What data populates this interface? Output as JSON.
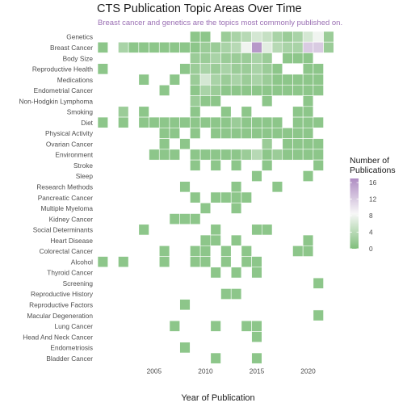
{
  "chart_data": {
    "type": "heatmap",
    "title": "CTS Publication Topic Areas Over Time",
    "subtitle": "Breast cancer and genetics are the topics most commonly published on.",
    "xlabel": "Year of Publication",
    "ylabel": "",
    "xlim": [
      1999.5,
      2022.5
    ],
    "x_ticks": [
      2005,
      2010,
      2015,
      2020
    ],
    "legend": {
      "title_line1": "Number of",
      "title_line2": "Publications",
      "range": [
        0,
        17
      ],
      "ticks": [
        0,
        4,
        8,
        12,
        16
      ],
      "colors": {
        "low": "#7fbf7b",
        "mid": "#f7f7f7",
        "high": "#af8dc3"
      }
    },
    "topics": [
      "Genetics",
      "Breast Cancer",
      "Body Size",
      "Reproductive Health",
      "Medications",
      "Endometrial Cancer",
      "Non-Hodgkin Lymphoma",
      "Smoking",
      "Diet",
      "Physical Activity",
      "Ovarian Cancer",
      "Environment",
      "Stroke",
      "Sleep",
      "Research Methods",
      "Pancreatic Cancer",
      "Multiple Myeloma",
      "Kidney Cancer",
      "Social Determinants",
      "Heart Disease",
      "Colorectal Cancer",
      "Alcohol",
      "Thyroid Cancer",
      "Screening",
      "Reproductive History",
      "Reproductive Factors",
      "Macular Degeneration",
      "Lung Cancer",
      "Head And Neck Cancer",
      "Endometriosis",
      "Bladder Cancer"
    ],
    "cells": [
      [
        "Genetics",
        2009,
        1
      ],
      [
        "Genetics",
        2010,
        1
      ],
      [
        "Genetics",
        2012,
        2
      ],
      [
        "Genetics",
        2013,
        3
      ],
      [
        "Genetics",
        2014,
        4
      ],
      [
        "Genetics",
        2015,
        6
      ],
      [
        "Genetics",
        2016,
        5
      ],
      [
        "Genetics",
        2017,
        3
      ],
      [
        "Genetics",
        2018,
        2
      ],
      [
        "Genetics",
        2019,
        3
      ],
      [
        "Genetics",
        2020,
        6
      ],
      [
        "Genetics",
        2021,
        8
      ],
      [
        "Genetics",
        2022,
        2
      ],
      [
        "Breast Cancer",
        2000,
        1
      ],
      [
        "Breast Cancer",
        2002,
        3
      ],
      [
        "Breast Cancer",
        2003,
        1
      ],
      [
        "Breast Cancer",
        2004,
        1
      ],
      [
        "Breast Cancer",
        2005,
        1
      ],
      [
        "Breast Cancer",
        2006,
        1
      ],
      [
        "Breast Cancer",
        2007,
        1
      ],
      [
        "Breast Cancer",
        2008,
        1
      ],
      [
        "Breast Cancer",
        2009,
        1
      ],
      [
        "Breast Cancer",
        2010,
        2
      ],
      [
        "Breast Cancer",
        2011,
        2
      ],
      [
        "Breast Cancer",
        2012,
        3
      ],
      [
        "Breast Cancer",
        2013,
        4
      ],
      [
        "Breast Cancer",
        2014,
        8
      ],
      [
        "Breast Cancer",
        2015,
        16
      ],
      [
        "Breast Cancer",
        2016,
        7
      ],
      [
        "Breast Cancer",
        2017,
        4
      ],
      [
        "Breast Cancer",
        2018,
        3
      ],
      [
        "Breast Cancer",
        2019,
        3
      ],
      [
        "Breast Cancer",
        2020,
        12
      ],
      [
        "Breast Cancer",
        2021,
        12
      ],
      [
        "Breast Cancer",
        2022,
        2
      ],
      [
        "Body Size",
        2009,
        2
      ],
      [
        "Body Size",
        2010,
        2
      ],
      [
        "Body Size",
        2011,
        3
      ],
      [
        "Body Size",
        2012,
        2
      ],
      [
        "Body Size",
        2013,
        2
      ],
      [
        "Body Size",
        2014,
        2
      ],
      [
        "Body Size",
        2015,
        3
      ],
      [
        "Body Size",
        2016,
        2
      ],
      [
        "Body Size",
        2018,
        1
      ],
      [
        "Body Size",
        2019,
        1
      ],
      [
        "Body Size",
        2020,
        1
      ],
      [
        "Reproductive Health",
        2000,
        1
      ],
      [
        "Reproductive Health",
        2008,
        1
      ],
      [
        "Reproductive Health",
        2009,
        2
      ],
      [
        "Reproductive Health",
        2010,
        3
      ],
      [
        "Reproductive Health",
        2011,
        2
      ],
      [
        "Reproductive Health",
        2012,
        3
      ],
      [
        "Reproductive Health",
        2013,
        2
      ],
      [
        "Reproductive Health",
        2014,
        2
      ],
      [
        "Reproductive Health",
        2015,
        3
      ],
      [
        "Reproductive Health",
        2016,
        2
      ],
      [
        "Reproductive Health",
        2017,
        1
      ],
      [
        "Reproductive Health",
        2020,
        1
      ],
      [
        "Reproductive Health",
        2021,
        1
      ],
      [
        "Medications",
        2004,
        1
      ],
      [
        "Medications",
        2007,
        1
      ],
      [
        "Medications",
        2009,
        2
      ],
      [
        "Medications",
        2010,
        6
      ],
      [
        "Medications",
        2011,
        3
      ],
      [
        "Medications",
        2012,
        2
      ],
      [
        "Medications",
        2013,
        3
      ],
      [
        "Medications",
        2014,
        2
      ],
      [
        "Medications",
        2015,
        3
      ],
      [
        "Medications",
        2016,
        2
      ],
      [
        "Medications",
        2017,
        1
      ],
      [
        "Medications",
        2018,
        1
      ],
      [
        "Medications",
        2019,
        1
      ],
      [
        "Medications",
        2020,
        1
      ],
      [
        "Medications",
        2021,
        1
      ],
      [
        "Endometrial Cancer",
        2006,
        1
      ],
      [
        "Endometrial Cancer",
        2009,
        1
      ],
      [
        "Endometrial Cancer",
        2010,
        3
      ],
      [
        "Endometrial Cancer",
        2011,
        2
      ],
      [
        "Endometrial Cancer",
        2012,
        1
      ],
      [
        "Endometrial Cancer",
        2013,
        1
      ],
      [
        "Endometrial Cancer",
        2014,
        1
      ],
      [
        "Endometrial Cancer",
        2015,
        1
      ],
      [
        "Endometrial Cancer",
        2016,
        1
      ],
      [
        "Endometrial Cancer",
        2017,
        1
      ],
      [
        "Endometrial Cancer",
        2018,
        1
      ],
      [
        "Endometrial Cancer",
        2019,
        1
      ],
      [
        "Endometrial Cancer",
        2020,
        1
      ],
      [
        "Endometrial Cancer",
        2021,
        1
      ],
      [
        "Non-Hodgkin Lymphoma",
        2009,
        2
      ],
      [
        "Non-Hodgkin Lymphoma",
        2010,
        1
      ],
      [
        "Non-Hodgkin Lymphoma",
        2011,
        1
      ],
      [
        "Non-Hodgkin Lymphoma",
        2016,
        1
      ],
      [
        "Non-Hodgkin Lymphoma",
        2020,
        1
      ],
      [
        "Smoking",
        2002,
        2
      ],
      [
        "Smoking",
        2004,
        1
      ],
      [
        "Smoking",
        2009,
        1
      ],
      [
        "Smoking",
        2012,
        1
      ],
      [
        "Smoking",
        2014,
        1
      ],
      [
        "Smoking",
        2019,
        1
      ],
      [
        "Smoking",
        2020,
        1
      ],
      [
        "Diet",
        2000,
        1
      ],
      [
        "Diet",
        2002,
        1
      ],
      [
        "Diet",
        2004,
        1
      ],
      [
        "Diet",
        2005,
        1
      ],
      [
        "Diet",
        2006,
        1
      ],
      [
        "Diet",
        2007,
        1
      ],
      [
        "Diet",
        2008,
        1
      ],
      [
        "Diet",
        2009,
        1
      ],
      [
        "Diet",
        2010,
        1
      ],
      [
        "Diet",
        2011,
        1
      ],
      [
        "Diet",
        2012,
        1
      ],
      [
        "Diet",
        2013,
        2
      ],
      [
        "Diet",
        2014,
        1
      ],
      [
        "Diet",
        2015,
        1
      ],
      [
        "Diet",
        2016,
        1
      ],
      [
        "Diet",
        2017,
        1
      ],
      [
        "Diet",
        2019,
        1
      ],
      [
        "Diet",
        2020,
        1
      ],
      [
        "Diet",
        2021,
        1
      ],
      [
        "Physical Activity",
        2006,
        1
      ],
      [
        "Physical Activity",
        2007,
        1
      ],
      [
        "Physical Activity",
        2009,
        1
      ],
      [
        "Physical Activity",
        2011,
        1
      ],
      [
        "Physical Activity",
        2012,
        1
      ],
      [
        "Physical Activity",
        2013,
        1
      ],
      [
        "Physical Activity",
        2014,
        1
      ],
      [
        "Physical Activity",
        2015,
        1
      ],
      [
        "Physical Activity",
        2016,
        1
      ],
      [
        "Physical Activity",
        2017,
        1
      ],
      [
        "Physical Activity",
        2018,
        1
      ],
      [
        "Physical Activity",
        2019,
        1
      ],
      [
        "Physical Activity",
        2020,
        1
      ],
      [
        "Ovarian Cancer",
        2006,
        1
      ],
      [
        "Ovarian Cancer",
        2008,
        1
      ],
      [
        "Ovarian Cancer",
        2016,
        2
      ],
      [
        "Ovarian Cancer",
        2018,
        1
      ],
      [
        "Ovarian Cancer",
        2019,
        1
      ],
      [
        "Ovarian Cancer",
        2020,
        1
      ],
      [
        "Ovarian Cancer",
        2021,
        1
      ],
      [
        "Environment",
        2005,
        1
      ],
      [
        "Environment",
        2006,
        1
      ],
      [
        "Environment",
        2007,
        1
      ],
      [
        "Environment",
        2009,
        1
      ],
      [
        "Environment",
        2010,
        1
      ],
      [
        "Environment",
        2011,
        1
      ],
      [
        "Environment",
        2012,
        1
      ],
      [
        "Environment",
        2013,
        1
      ],
      [
        "Environment",
        2014,
        2
      ],
      [
        "Environment",
        2015,
        4
      ],
      [
        "Environment",
        2016,
        1
      ],
      [
        "Environment",
        2017,
        2
      ],
      [
        "Environment",
        2018,
        1
      ],
      [
        "Environment",
        2019,
        1
      ],
      [
        "Environment",
        2020,
        1
      ],
      [
        "Environment",
        2021,
        1
      ],
      [
        "Stroke",
        2009,
        1
      ],
      [
        "Stroke",
        2011,
        1
      ],
      [
        "Stroke",
        2013,
        1
      ],
      [
        "Stroke",
        2016,
        1
      ],
      [
        "Stroke",
        2021,
        1
      ],
      [
        "Sleep",
        2015,
        1
      ],
      [
        "Sleep",
        2020,
        1
      ],
      [
        "Research Methods",
        2008,
        1
      ],
      [
        "Research Methods",
        2013,
        1
      ],
      [
        "Research Methods",
        2017,
        1
      ],
      [
        "Pancreatic Cancer",
        2009,
        1
      ],
      [
        "Pancreatic Cancer",
        2011,
        1
      ],
      [
        "Pancreatic Cancer",
        2012,
        1
      ],
      [
        "Pancreatic Cancer",
        2013,
        1
      ],
      [
        "Pancreatic Cancer",
        2014,
        1
      ],
      [
        "Multiple Myeloma",
        2010,
        1
      ],
      [
        "Multiple Myeloma",
        2013,
        1
      ],
      [
        "Kidney Cancer",
        2007,
        1
      ],
      [
        "Kidney Cancer",
        2008,
        1
      ],
      [
        "Kidney Cancer",
        2009,
        1
      ],
      [
        "Social Determinants",
        2004,
        1
      ],
      [
        "Social Determinants",
        2011,
        1
      ],
      [
        "Social Determinants",
        2015,
        1
      ],
      [
        "Social Determinants",
        2016,
        1
      ],
      [
        "Heart Disease",
        2010,
        1
      ],
      [
        "Heart Disease",
        2011,
        1
      ],
      [
        "Heart Disease",
        2013,
        1
      ],
      [
        "Heart Disease",
        2020,
        1
      ],
      [
        "Colorectal Cancer",
        2006,
        1
      ],
      [
        "Colorectal Cancer",
        2009,
        1
      ],
      [
        "Colorectal Cancer",
        2010,
        1
      ],
      [
        "Colorectal Cancer",
        2012,
        1
      ],
      [
        "Colorectal Cancer",
        2014,
        1
      ],
      [
        "Colorectal Cancer",
        2019,
        1
      ],
      [
        "Colorectal Cancer",
        2020,
        1
      ],
      [
        "Alcohol",
        2000,
        1
      ],
      [
        "Alcohol",
        2002,
        1
      ],
      [
        "Alcohol",
        2006,
        1
      ],
      [
        "Alcohol",
        2009,
        1
      ],
      [
        "Alcohol",
        2010,
        1
      ],
      [
        "Alcohol",
        2012,
        1
      ],
      [
        "Alcohol",
        2014,
        1
      ],
      [
        "Alcohol",
        2015,
        1
      ],
      [
        "Thyroid Cancer",
        2011,
        1
      ],
      [
        "Thyroid Cancer",
        2013,
        1
      ],
      [
        "Thyroid Cancer",
        2015,
        1
      ],
      [
        "Screening",
        2021,
        1
      ],
      [
        "Reproductive History",
        2012,
        1
      ],
      [
        "Reproductive History",
        2013,
        1
      ],
      [
        "Reproductive Factors",
        2008,
        1
      ],
      [
        "Macular Degeneration",
        2021,
        1
      ],
      [
        "Lung Cancer",
        2007,
        1
      ],
      [
        "Lung Cancer",
        2011,
        1
      ],
      [
        "Lung Cancer",
        2014,
        1
      ],
      [
        "Lung Cancer",
        2015,
        1
      ],
      [
        "Head And Neck Cancer",
        2015,
        1
      ],
      [
        "Endometriosis",
        2008,
        1
      ],
      [
        "Bladder Cancer",
        2011,
        1
      ],
      [
        "Bladder Cancer",
        2015,
        1
      ]
    ]
  }
}
